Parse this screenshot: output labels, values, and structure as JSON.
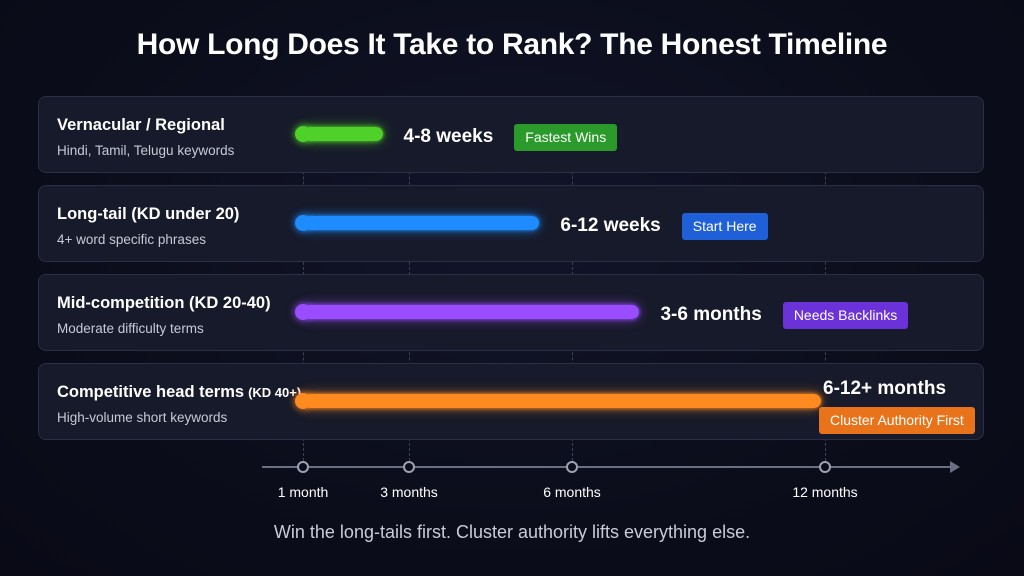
{
  "title": "How Long Does It Take to Rank? The Honest Timeline",
  "caption": "Win the long-tails first. Cluster authority lifts everything else.",
  "chart_data": {
    "type": "bar",
    "orientation": "horizontal",
    "x_axis": {
      "ticks": [
        {
          "value": 1,
          "label": "1 month"
        },
        {
          "value": 3,
          "label": "3 months"
        },
        {
          "value": 6,
          "label": "6 months"
        },
        {
          "value": 12,
          "label": "12 months"
        }
      ],
      "range": [
        1,
        12
      ]
    },
    "rows": [
      {
        "name": "Vernacular / Regional",
        "subtitle": "Hindi, Tamil, Telugu keywords",
        "duration_label": "4-8 weeks",
        "badge": "Fastest Wins",
        "start_months": 1,
        "end_months": 2.5,
        "color": "#4fd12a",
        "badge_color": "#2a9a2a"
      },
      {
        "name": "Long-tail (KD under 20)",
        "subtitle": "4+ word specific phrases",
        "duration_label": "6-12 weeks",
        "badge": "Start Here",
        "start_months": 1,
        "end_months": 5.4,
        "color": "#1e8cff",
        "badge_color": "#1f5fd8"
      },
      {
        "name": "Mid-competition (KD 20-40)",
        "subtitle": "Moderate difficulty terms",
        "duration_label": "3-6 months",
        "badge": "Needs Backlinks",
        "start_months": 1,
        "end_months": 7.6,
        "color": "#9a4dff",
        "badge_color": "#6a32d8"
      },
      {
        "name": "Competitive head terms",
        "name_suffix": "(KD 40+)",
        "subtitle": "High-volume short keywords",
        "duration_label": "6-12+ months",
        "badge": "Cluster Authority First",
        "start_months": 1,
        "end_months": 11.9,
        "color": "#ff8a1f",
        "badge_color": "#e8731a"
      }
    ],
    "grid": true
  }
}
